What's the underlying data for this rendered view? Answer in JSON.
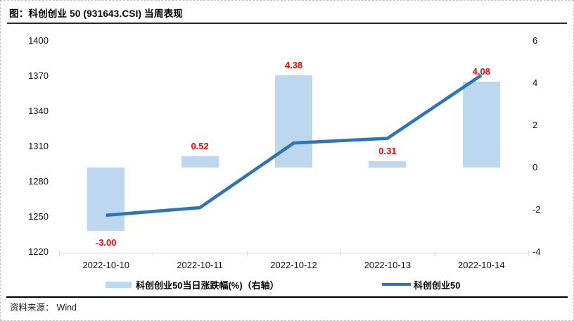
{
  "title": "图：科创创业 50 (931643.CSI) 当周表现",
  "source": {
    "label": "资料来源：",
    "value": "Wind"
  },
  "colors": {
    "bar_fill": "#BDD7EE",
    "line_stroke": "#2E75B6",
    "value_label": "#FF0000",
    "axis_line": "#D9D9D9",
    "title_rule": "#23293A",
    "footer_rule": "#000000",
    "text": "#111111"
  },
  "legend": [
    {
      "label": "科创创业50当日涨跌幅(%)（右轴）",
      "type": "bar"
    },
    {
      "label": "科创创业50",
      "type": "line"
    }
  ],
  "chart_data": {
    "type": "bar",
    "subtype": "bar+line combo, dual axis",
    "categories": [
      "2022-10-10",
      "2022-10-11",
      "2022-10-12",
      "2022-10-13",
      "2022-10-14"
    ],
    "series": [
      {
        "name": "科创创业50当日涨跌幅(%)（右轴）",
        "type": "bar",
        "axis": "right",
        "values": [
          -3.0,
          0.52,
          4.38,
          0.31,
          4.08
        ],
        "value_labels": [
          "-3.00",
          "0.52",
          "4.38",
          "0.31",
          "4.08"
        ]
      },
      {
        "name": "科创创业50",
        "type": "line",
        "axis": "left",
        "values": [
          1251.3,
          1257.8,
          1312.9,
          1316.9,
          1370.7
        ]
      }
    ],
    "left_axis": {
      "min": 1220,
      "max": 1400,
      "ticks": [
        1400,
        1370,
        1340,
        1310,
        1280,
        1250,
        1220
      ]
    },
    "right_axis": {
      "min": -4,
      "max": 6,
      "ticks": [
        6,
        4,
        2,
        0,
        -2,
        -4
      ]
    },
    "grid": false,
    "legend_position": "bottom",
    "title": "图：科创创业 50 (931643.CSI) 当周表现"
  }
}
